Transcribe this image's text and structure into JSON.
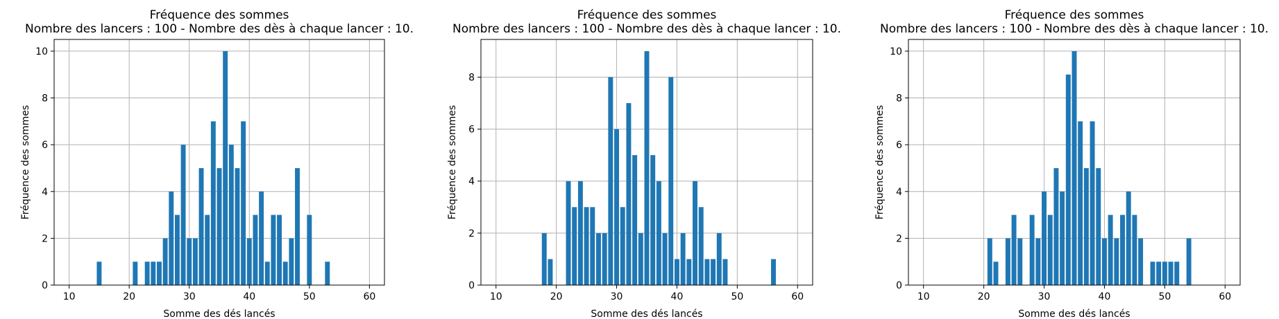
{
  "chart_data": [
    {
      "type": "bar",
      "title": "Fréquence des sommes",
      "subtitle": "Nombre des lancers : 100 - Nombre des dès à chaque lancer : 10.",
      "xlabel": "Somme des dés lancés",
      "ylabel": "Fréquence des sommes",
      "xlim": [
        7.5,
        62.5
      ],
      "ylim": [
        0,
        10.5
      ],
      "xticks": [
        10,
        20,
        30,
        40,
        50,
        60
      ],
      "yticks": [
        0,
        2,
        4,
        6,
        8,
        10
      ],
      "grid": true,
      "color": "#1f77b4",
      "x": [
        15,
        21,
        23,
        24,
        25,
        26,
        27,
        28,
        29,
        30,
        31,
        32,
        33,
        34,
        35,
        36,
        37,
        38,
        39,
        40,
        41,
        42,
        43,
        44,
        45,
        46,
        47,
        48,
        50,
        53
      ],
      "values": [
        1,
        1,
        1,
        1,
        1,
        2,
        4,
        3,
        6,
        2,
        2,
        5,
        3,
        7,
        5,
        10,
        6,
        5,
        7,
        2,
        3,
        4,
        1,
        3,
        3,
        1,
        2,
        5,
        3,
        1
      ]
    },
    {
      "type": "bar",
      "title": "Fréquence des sommes",
      "subtitle": "Nombre des lancers : 100 - Nombre des dès à chaque lancer : 10.",
      "xlabel": "Somme des dés lancés",
      "ylabel": "Fréquence des sommes",
      "xlim": [
        7.5,
        62.5
      ],
      "ylim": [
        0,
        9.45
      ],
      "xticks": [
        10,
        20,
        30,
        40,
        50,
        60
      ],
      "yticks": [
        0,
        2,
        4,
        6,
        8
      ],
      "grid": true,
      "color": "#1f77b4",
      "x": [
        18,
        19,
        22,
        23,
        24,
        25,
        26,
        27,
        28,
        29,
        30,
        31,
        32,
        33,
        34,
        35,
        36,
        37,
        38,
        39,
        40,
        41,
        42,
        43,
        44,
        45,
        46,
        47,
        48,
        56
      ],
      "values": [
        2,
        1,
        4,
        3,
        4,
        3,
        3,
        2,
        2,
        8,
        6,
        3,
        7,
        5,
        2,
        9,
        5,
        4,
        2,
        8,
        1,
        2,
        1,
        4,
        3,
        1,
        1,
        2,
        1,
        1
      ]
    },
    {
      "type": "bar",
      "title": "Fréquence des sommes",
      "subtitle": "Nombre des lancers : 100 - Nombre des dès à chaque lancer : 10.",
      "xlabel": "Somme des dés lancés",
      "ylabel": "Fréquence des sommes",
      "xlim": [
        7.5,
        62.5
      ],
      "ylim": [
        0,
        10.5
      ],
      "xticks": [
        10,
        20,
        30,
        40,
        50,
        60
      ],
      "yticks": [
        0,
        2,
        4,
        6,
        8,
        10
      ],
      "grid": true,
      "color": "#1f77b4",
      "x": [
        21,
        22,
        24,
        25,
        26,
        28,
        29,
        30,
        31,
        32,
        33,
        34,
        35,
        36,
        37,
        38,
        39,
        40,
        41,
        42,
        43,
        44,
        45,
        46,
        48,
        49,
        50,
        51,
        52,
        54
      ],
      "values": [
        2,
        1,
        2,
        3,
        2,
        3,
        2,
        4,
        3,
        5,
        4,
        9,
        10,
        7,
        5,
        7,
        5,
        2,
        3,
        2,
        3,
        4,
        3,
        2,
        1,
        1,
        1,
        1,
        1,
        2
      ]
    }
  ]
}
